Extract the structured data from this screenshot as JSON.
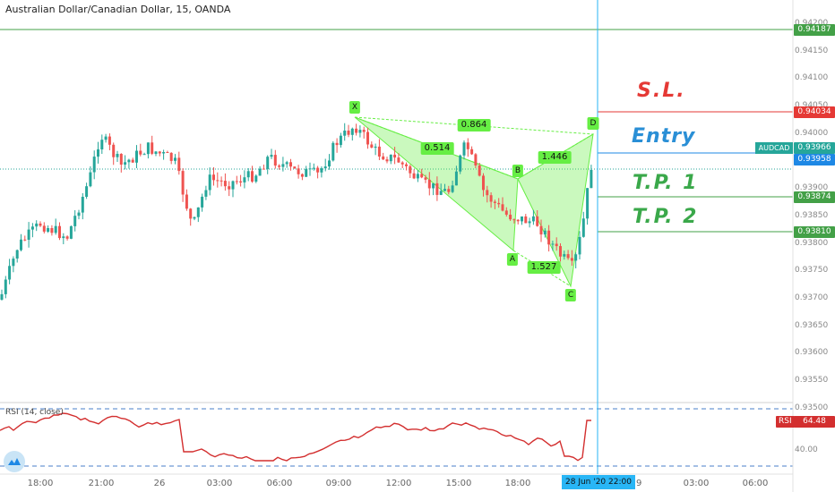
{
  "header": {
    "title": "Australian Dollar/Canadian Dollar, 15, OANDA"
  },
  "rsi": {
    "title": "RSI (14, close)",
    "tag_label": "RSI",
    "tag_value": "64.48",
    "tick": "40.00"
  },
  "price_axis": {
    "ticks": [
      "0.94200",
      "0.94150",
      "0.94100",
      "0.94050",
      "0.94000",
      "0.93950",
      "0.93900",
      "0.93850",
      "0.93800",
      "0.93750",
      "0.93700",
      "0.93650",
      "0.93600",
      "0.93550",
      "0.93500"
    ],
    "tags": {
      "tp_top": "0.94187",
      "sl": "0.94034",
      "symbol": "AUDCAD",
      "current": "0.93966",
      "entry": "0.93958",
      "tp1": "0.93874",
      "tp2": "0.93810"
    }
  },
  "time_axis": {
    "labels": [
      "18:00",
      "21:00",
      "26",
      "03:00",
      "06:00",
      "09:00",
      "12:00",
      "15:00",
      "18:00",
      "29",
      "03:00",
      "06:00"
    ],
    "crosshair_label": "28 Jun '20   22:00"
  },
  "annotations": {
    "sl": "S.L.",
    "entry": "Entry",
    "tp1": "T.P. 1",
    "tp2": "T.P. 2"
  },
  "pattern": {
    "points": {
      "x": "X",
      "a": "A",
      "b": "B",
      "c": "C",
      "d": "D"
    },
    "ratios": {
      "xb": "0.514",
      "xd": "0.864",
      "ac": "1.527",
      "bd": "1.446"
    }
  },
  "colors": {
    "up": "#26a69a",
    "down": "#ef5350",
    "sl": "#e53935",
    "entry": "#1e88e5",
    "tp": "#43a047",
    "pattern": "#66ee44",
    "rsi": "#d32f2f",
    "crosshair": "#29b6f6"
  }
}
